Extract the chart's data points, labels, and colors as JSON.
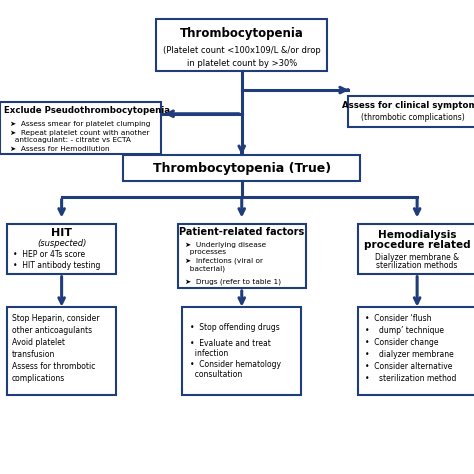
{
  "bg_color": "#ffffff",
  "arrow_color": "#1f3d7a",
  "box_border_color": "#1f3d7a",
  "box_bg": "#ffffff",
  "text_color": "#000000",
  "box1_title": "Thrombocytopenia",
  "box1_sub": "(Platelet count <100x109/L &/or drop\nin platelet count by >30%",
  "box2_title": "Assess for clinical symptoms",
  "box2_sub": "(thrombotic complications)",
  "box3_title": "Exclude Pseudothrombocytopenia",
  "box3_items": [
    "Assess smear for platelet clumping",
    "Repeat platelet count with another\n  anticoagulant: - citrate vs ECTA",
    "Assess for Hemodilution"
  ],
  "box4_title": "Thrombocytopenia (True)",
  "box5_title": "HIT",
  "box5_sub": "(suspected)",
  "box5_items": [
    "HEP or 4Ts score",
    "HIT antibody testing"
  ],
  "box6_title": "Patient-related factors",
  "box6_items": [
    "Underlying disease\n  processes",
    "Infections (viral or\n  bacterial)",
    "Drugs (refer to table 1)"
  ],
  "box7_title": "Hemodialysis\nprocedure related",
  "box7_sub": "Dialyzer membrane &\nsterilization methods",
  "box8_lines": [
    "Stop Heparin, consider",
    "other anticoagulants",
    "Avoid platelet",
    "transfusion",
    "Assess for thrombotic",
    "complications"
  ],
  "box9_items": [
    "Stop offending drugs",
    "Evaluate and treat\n  infection",
    "Consider hematology\n  consultation"
  ],
  "box10_items": [
    "Consider ‘flush",
    "  dump’ technique",
    "Consider change",
    "  dialyzer membrane",
    "Consider alternative",
    "  sterilization method"
  ]
}
